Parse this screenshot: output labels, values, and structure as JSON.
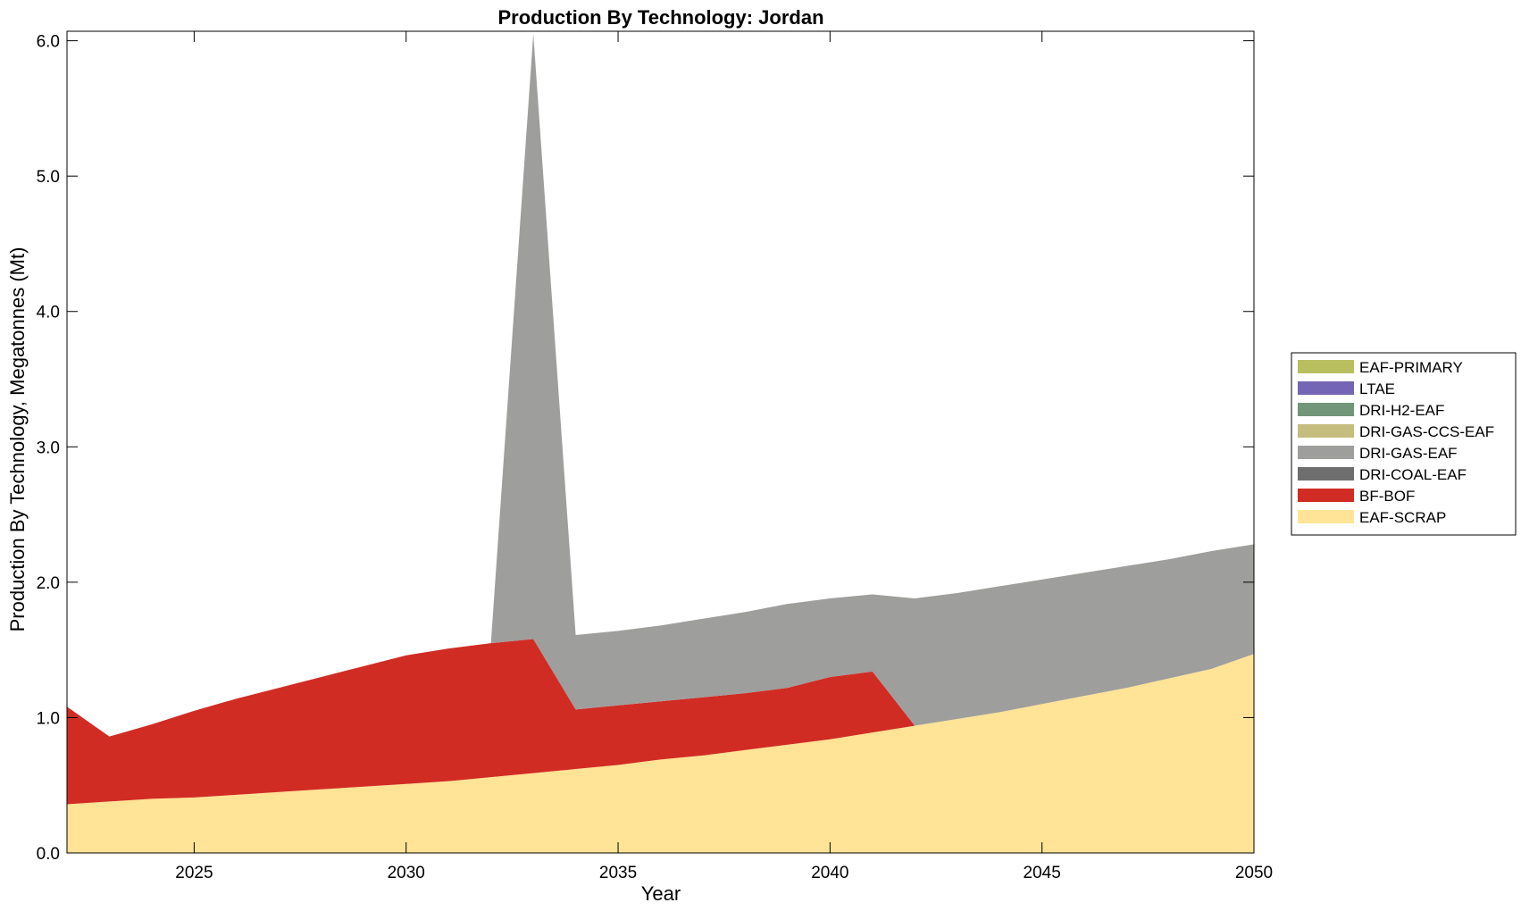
{
  "chart_data": {
    "type": "area",
    "stacked": true,
    "title": "Production By Technology: Jordan",
    "xlabel": "Year",
    "ylabel": "Production By Technology, Megatonnes (Mt)",
    "xlim": [
      2022,
      2050
    ],
    "ylim": [
      0,
      6.07
    ],
    "x_ticks": [
      2025,
      2030,
      2035,
      2040,
      2045,
      2050
    ],
    "y_ticks": [
      0.0,
      1.0,
      2.0,
      3.0,
      4.0,
      5.0,
      6.0
    ],
    "y_tick_labels": [
      "0.0",
      "1.0",
      "2.0",
      "3.0",
      "4.0",
      "5.0",
      "6.0"
    ],
    "grid": false,
    "legend_position": "right",
    "x": [
      2022,
      2023,
      2024,
      2025,
      2026,
      2027,
      2028,
      2029,
      2030,
      2031,
      2032,
      2033,
      2034,
      2035,
      2036,
      2037,
      2038,
      2039,
      2040,
      2041,
      2042,
      2043,
      2044,
      2045,
      2046,
      2047,
      2048,
      2049,
      2050
    ],
    "series": [
      {
        "name": "EAF-SCRAP",
        "color": "#FFE396",
        "values": [
          0.36,
          0.38,
          0.4,
          0.41,
          0.43,
          0.45,
          0.47,
          0.49,
          0.51,
          0.53,
          0.56,
          0.59,
          0.62,
          0.65,
          0.69,
          0.72,
          0.76,
          0.8,
          0.84,
          0.89,
          0.94,
          0.99,
          1.04,
          1.1,
          1.16,
          1.22,
          1.29,
          1.36,
          1.47
        ]
      },
      {
        "name": "BF-BOF",
        "color": "#D12C24",
        "values": [
          0.72,
          0.48,
          0.55,
          0.64,
          0.71,
          0.77,
          0.83,
          0.89,
          0.95,
          0.98,
          0.99,
          0.99,
          0.44,
          0.44,
          0.43,
          0.43,
          0.42,
          0.42,
          0.46,
          0.45,
          0.0,
          0.0,
          0.0,
          0.0,
          0.0,
          0.0,
          0.0,
          0.0,
          0.0
        ]
      },
      {
        "name": "DRI-COAL-EAF",
        "color": "#6E6E6E",
        "values": [
          0,
          0,
          0,
          0,
          0,
          0,
          0,
          0,
          0,
          0,
          0,
          0,
          0,
          0,
          0,
          0,
          0,
          0,
          0,
          0,
          0,
          0,
          0,
          0,
          0,
          0,
          0,
          0,
          0
        ]
      },
      {
        "name": "DRI-GAS-EAF",
        "color": "#9E9E9C",
        "values": [
          0,
          0,
          0,
          0,
          0,
          0,
          0,
          0,
          0,
          0,
          0.0,
          4.47,
          0.55,
          0.55,
          0.56,
          0.58,
          0.6,
          0.62,
          0.58,
          0.57,
          0.94,
          0.93,
          0.93,
          0.92,
          0.91,
          0.9,
          0.88,
          0.87,
          0.81
        ]
      },
      {
        "name": "DRI-GAS-CCS-EAF",
        "color": "#C4BD7D",
        "values": [
          0,
          0,
          0,
          0,
          0,
          0,
          0,
          0,
          0,
          0,
          0,
          0,
          0,
          0,
          0,
          0,
          0,
          0,
          0,
          0,
          0,
          0,
          0,
          0,
          0,
          0,
          0,
          0,
          0
        ]
      },
      {
        "name": "DRI-H2-EAF",
        "color": "#709578",
        "values": [
          0,
          0,
          0,
          0,
          0,
          0,
          0,
          0,
          0,
          0,
          0,
          0,
          0,
          0,
          0,
          0,
          0,
          0,
          0,
          0,
          0,
          0,
          0,
          0,
          0,
          0,
          0,
          0,
          0
        ]
      },
      {
        "name": "LTAE",
        "color": "#7465B5",
        "values": [
          0,
          0,
          0,
          0,
          0,
          0,
          0,
          0,
          0,
          0,
          0,
          0,
          0,
          0,
          0,
          0,
          0,
          0,
          0,
          0,
          0,
          0,
          0,
          0,
          0,
          0,
          0,
          0,
          0
        ]
      },
      {
        "name": "EAF-PRIMARY",
        "color": "#B9BF5F",
        "values": [
          0,
          0,
          0,
          0,
          0,
          0,
          0,
          0,
          0,
          0,
          0,
          0,
          0,
          0,
          0,
          0,
          0,
          0,
          0,
          0,
          0,
          0,
          0,
          0,
          0,
          0,
          0,
          0,
          0
        ]
      }
    ],
    "legend_order": [
      "EAF-PRIMARY",
      "LTAE",
      "DRI-H2-EAF",
      "DRI-GAS-CCS-EAF",
      "DRI-GAS-EAF",
      "DRI-COAL-EAF",
      "BF-BOF",
      "EAF-SCRAP"
    ]
  }
}
